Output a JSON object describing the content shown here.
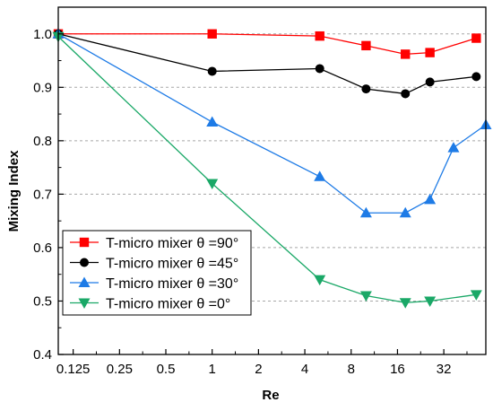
{
  "chart_data": {
    "type": "line",
    "xlabel": "Re",
    "ylabel": "Mixing Index",
    "x_scale": "log2",
    "xlim": [
      0.1,
      60
    ],
    "ylim": [
      0.4,
      1.05
    ],
    "x_ticks": [
      {
        "value": 0.125,
        "label": "0.125"
      },
      {
        "value": 0.25,
        "label": "0.25"
      },
      {
        "value": 0.5,
        "label": "0.5"
      },
      {
        "value": 1,
        "label": "1"
      },
      {
        "value": 2,
        "label": "2"
      },
      {
        "value": 4,
        "label": "4"
      },
      {
        "value": 8,
        "label": "8"
      },
      {
        "value": 16,
        "label": "16"
      },
      {
        "value": 32,
        "label": "32"
      }
    ],
    "y_ticks": [
      {
        "value": 0.4,
        "label": "0.4"
      },
      {
        "value": 0.5,
        "label": "0.5"
      },
      {
        "value": 0.6,
        "label": "0.6"
      },
      {
        "value": 0.7,
        "label": "0.7"
      },
      {
        "value": 0.8,
        "label": "0.8"
      },
      {
        "value": 0.9,
        "label": "0.9"
      },
      {
        "value": 1.0,
        "label": "1.0"
      }
    ],
    "grid": "horizontal dashed",
    "legend_position": "bottom-left",
    "series": [
      {
        "name": "T-micro mixer θ =90°",
        "color": "#ff0000",
        "marker": "square",
        "x": [
          0.1,
          1,
          5,
          10,
          18,
          26,
          52
        ],
        "y": [
          1.0,
          1.0,
          0.996,
          0.978,
          0.962,
          0.965,
          0.992
        ]
      },
      {
        "name": "T-micro mixer θ =45°",
        "color": "#000000",
        "marker": "circle",
        "x": [
          0.1,
          1,
          5,
          10,
          18,
          26,
          52
        ],
        "y": [
          1.0,
          0.93,
          0.935,
          0.897,
          0.888,
          0.91,
          0.92
        ]
      },
      {
        "name": "T-micro mixer θ =30°",
        "color": "#1e7be6",
        "marker": "triangle-up",
        "x": [
          0.1,
          1,
          5,
          10,
          18,
          26,
          37,
          60
        ],
        "y": [
          1.0,
          0.835,
          0.733,
          0.665,
          0.665,
          0.69,
          0.787,
          0.83
        ]
      },
      {
        "name": "T-micro mixer θ =0°",
        "color": "#1aa867",
        "marker": "triangle-down",
        "x": [
          0.1,
          1,
          5,
          10,
          18,
          26,
          52
        ],
        "y": [
          0.995,
          0.72,
          0.54,
          0.51,
          0.497,
          0.5,
          0.512
        ]
      }
    ]
  }
}
